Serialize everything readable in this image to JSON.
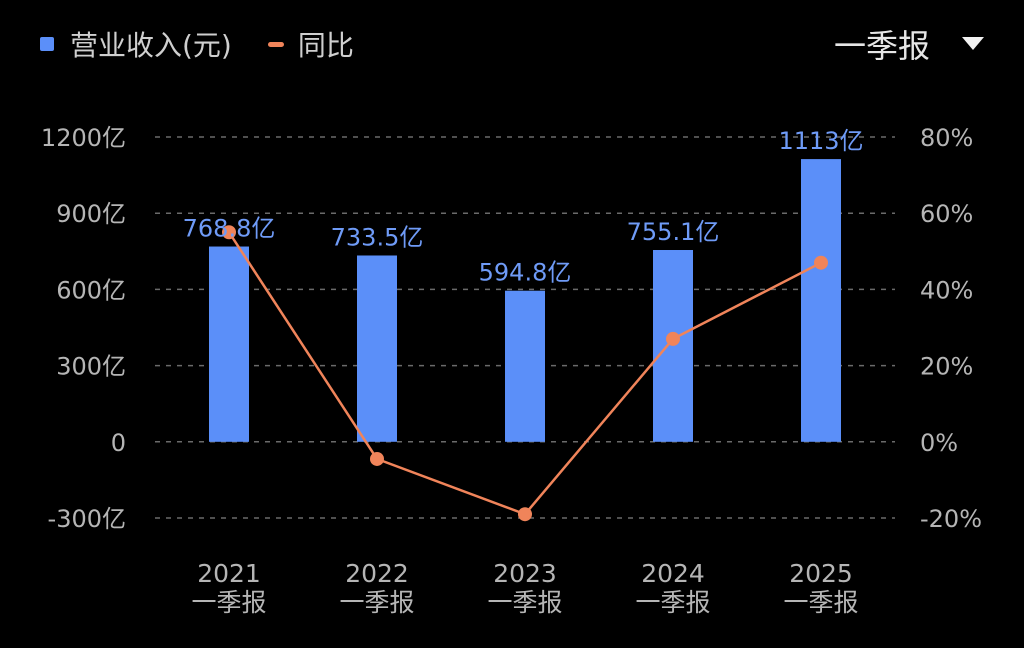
{
  "legend": {
    "revenue_label": "营业收入(元)",
    "yoy_label": "同比"
  },
  "period_selector": {
    "value": "一季报",
    "icon": "dropdown-triangle-icon"
  },
  "colors": {
    "bar": "#5B8FF9",
    "line": "#F0845A",
    "label": "#6F9BF7",
    "grid": "#6a6a6a"
  },
  "chart_data": {
    "type": "bar",
    "categories": [
      {
        "year": "2021",
        "period": "一季报"
      },
      {
        "year": "2022",
        "period": "一季报"
      },
      {
        "year": "2023",
        "period": "一季报"
      },
      {
        "year": "2024",
        "period": "一季报"
      },
      {
        "year": "2025",
        "period": "一季报"
      }
    ],
    "series": [
      {
        "name": "营业收入(元)",
        "type": "bar",
        "axis": "left",
        "values": [
          768.8,
          733.5,
          594.8,
          755.1,
          1113
        ],
        "labels": [
          "768.8亿",
          "733.5亿",
          "594.8亿",
          "755.1亿",
          "1113亿"
        ]
      },
      {
        "name": "同比",
        "type": "line",
        "axis": "right",
        "values": [
          55,
          -4.5,
          -19,
          27,
          47
        ]
      }
    ],
    "y_left": {
      "ylim": [
        -300,
        1200
      ],
      "ticks": [
        1200,
        900,
        600,
        300,
        0,
        -300
      ],
      "tick_labels": [
        "1200亿",
        "900亿",
        "600亿",
        "300亿",
        "0",
        "-300亿"
      ]
    },
    "y_right": {
      "ylim": [
        -20,
        80
      ],
      "ticks": [
        80,
        60,
        40,
        20,
        0,
        -20
      ],
      "tick_labels": [
        "80%",
        "60%",
        "40%",
        "20%",
        "0%",
        "-20%"
      ]
    },
    "grid": true,
    "legend_position": "top-left"
  }
}
